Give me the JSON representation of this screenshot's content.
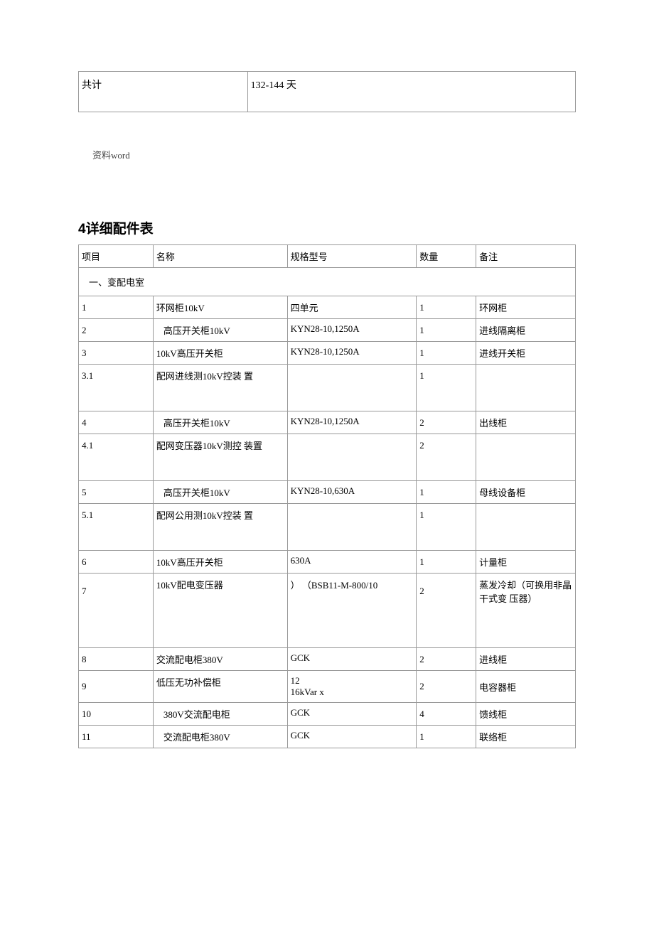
{
  "summary": {
    "label": "共计",
    "value": "132-144 天"
  },
  "watermark": "资料word",
  "section_heading": "4详细配件表",
  "columns": {
    "item": "项目",
    "name": "名称",
    "spec": "规格型号",
    "qty": "数量",
    "note": "备注"
  },
  "section_label": "一、变配电室",
  "rows": [
    {
      "item": "1",
      "name": "环网柜10kV",
      "spec": "四单元",
      "qty": "1",
      "note": "环网柜"
    },
    {
      "item": "2",
      "name": "高压开关柜10kV",
      "spec": "KYN28-10,1250A",
      "qty": "1",
      "note": "进线隔离柜",
      "indent": true
    },
    {
      "item": "3",
      "name": "10kV高压开关柜",
      "spec": "KYN28-10,1250A",
      "qty": "1",
      "note": "进线开关柜"
    },
    {
      "item": "3.1",
      "name": "配网进线测10kV控装 置",
      "spec": "",
      "qty": "1",
      "note": "",
      "tall": true
    },
    {
      "item": "4",
      "name": "高压开关柜10kV",
      "spec": "KYN28-10,1250A",
      "qty": "2",
      "note": "出线柜",
      "indent": true
    },
    {
      "item": "4.1",
      "name": "配网变压器10kV测控 装置",
      "spec": "",
      "qty": "2",
      "note": "",
      "tall": true
    },
    {
      "item": "5",
      "name": "高压开关柜10kV",
      "spec": "KYN28-10,630A",
      "qty": "1",
      "note": "母线设备柜",
      "indent": true
    },
    {
      "item": "5.1",
      "name": "配网公用测10kV控装 置",
      "spec": "",
      "qty": "1",
      "note": "",
      "tall": true
    },
    {
      "item": "6",
      "name": "10kV高压开关柜",
      "spec": "630A",
      "qty": "1",
      "note": "计量柜"
    },
    {
      "item": "7",
      "name": "10kV配电变压器",
      "spec": "） （BSB11-M-800/10",
      "qty": "2",
      "note": "蒸发冷却（可换用非晶干式变 压器）",
      "vtall": true
    },
    {
      "item": "8",
      "name": "交流配电柜380V",
      "spec": "GCK",
      "qty": "2",
      "note": "进线柜"
    },
    {
      "item": "9",
      "name": "低压无功补偿柜",
      "spec": "12\n16kVar x",
      "qty": "2",
      "note": "电容器柜"
    },
    {
      "item": "10",
      "name": "380V交流配电柜",
      "spec": "GCK",
      "qty": "4",
      "note": "馈线柜",
      "indent": true
    },
    {
      "item": "11",
      "name": "交流配电柜380V",
      "spec": "GCK",
      "qty": "1",
      "note": "联络柜",
      "indent": true
    }
  ]
}
